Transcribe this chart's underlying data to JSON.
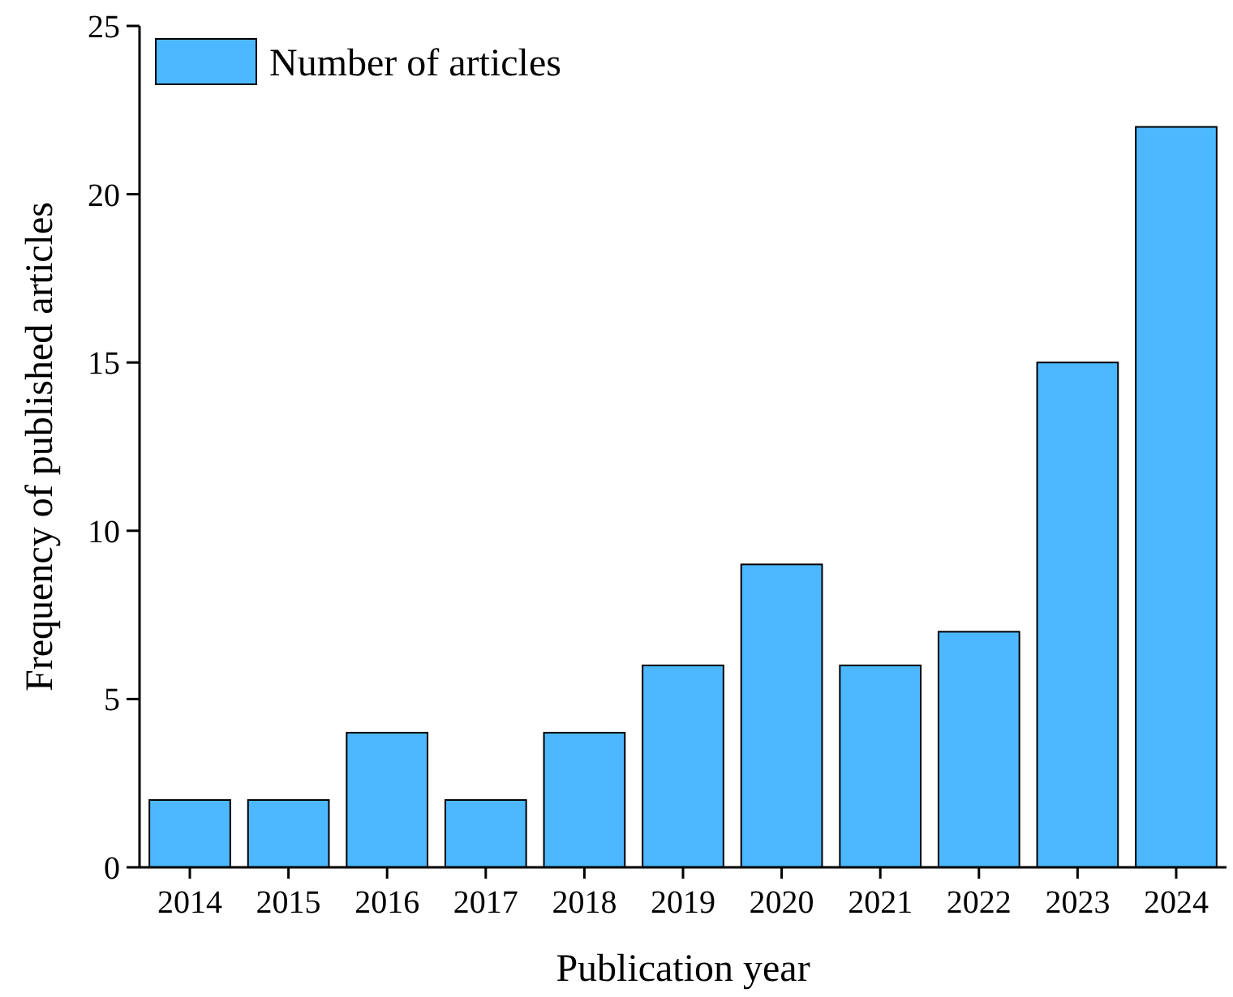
{
  "chart_data": {
    "type": "bar",
    "xlabel": "Publication year",
    "ylabel": "Frequency of published articles",
    "categories": [
      "2014",
      "2015",
      "2016",
      "2017",
      "2018",
      "2019",
      "2020",
      "2021",
      "2022",
      "2023",
      "2024"
    ],
    "series": [
      {
        "name": "Number of articles",
        "color": "#4db8ff",
        "values": [
          2,
          2,
          4,
          2,
          4,
          6,
          9,
          6,
          7,
          15,
          22
        ]
      }
    ],
    "ylim": [
      0,
      25
    ],
    "yticks": [
      0,
      5,
      10,
      15,
      20,
      25
    ],
    "legend": "top left",
    "grid": false
  }
}
